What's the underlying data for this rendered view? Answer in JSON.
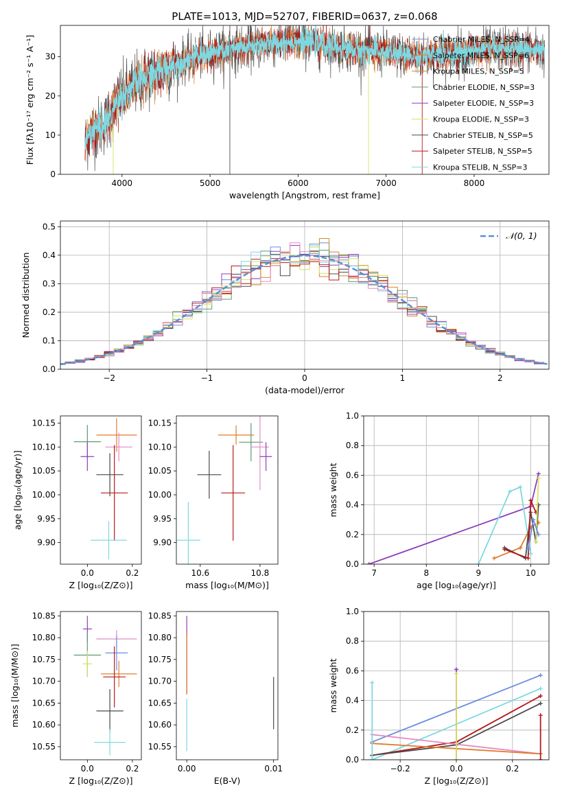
{
  "figure_title": "PLATE=1013, MJD=52707, FIBERID=0637, z=0.068",
  "colors": {
    "chabrier_miles": "#6a8be0",
    "salpeter_miles": "#e07b2e",
    "kroupa_miles": "#d28a28",
    "chabrier_elodie": "#5a9a6e",
    "salpeter_elodie": "#8e3fb8",
    "kroupa_elodie": "#d8e060",
    "chabrier_stelib": "#4a4a4a",
    "salpeter_stelib": "#b41818",
    "kroupa_stelib": "#7ed8e0",
    "pink": "#e48ac4",
    "gaussian": "#5b8fd4"
  },
  "chart_data": [
    {
      "id": "spectrum",
      "type": "line",
      "title": "PLATE=1013, MJD=52707, FIBERID=0637, z=0.068",
      "xlabel": "wavelength [Angstrom, rest frame]",
      "ylabel": "Flux [fλ10⁻¹⁷ erg cm⁻² s⁻¹ A⁻¹]",
      "xlim": [
        3300,
        8850
      ],
      "ylim": [
        0,
        38
      ],
      "xticks": [
        4000,
        5000,
        6000,
        7000,
        8000
      ],
      "yticks": [
        0,
        10,
        20,
        30
      ],
      "grid": false,
      "legend_position": "upper-right",
      "legend": [
        {
          "label": "Chabrier MILES, N_SSP=4",
          "color_key": "chabrier_miles"
        },
        {
          "label": "Salpeter MILES, N_SSP=6",
          "color_key": "salpeter_miles"
        },
        {
          "label": "Kroupa MILES, N_SSP=5",
          "color_key": "kroupa_miles"
        },
        {
          "label": "Chabrier ELODIE, N_SSP=3",
          "color_key": "chabrier_elodie"
        },
        {
          "label": "Salpeter ELODIE, N_SSP=3",
          "color_key": "salpeter_elodie"
        },
        {
          "label": "Kroupa ELODIE, N_SSP=3",
          "color_key": "kroupa_elodie"
        },
        {
          "label": "Chabrier STELIB, N_SSP=5",
          "color_key": "chabrier_stelib"
        },
        {
          "label": "Salpeter STELIB, N_SSP=5",
          "color_key": "salpeter_stelib"
        },
        {
          "label": "Kroupa STELIB, N_SSP=3",
          "color_key": "kroupa_stelib"
        }
      ],
      "continuum": {
        "x": [
          3580,
          3650,
          3750,
          3850,
          3950,
          4050,
          4150,
          4300,
          4500,
          4700,
          5000,
          5300,
          5600,
          6000,
          6300,
          6600,
          7000,
          7400,
          7800,
          8200,
          8600,
          8800
        ],
        "y": [
          8,
          11,
          12,
          14,
          19,
          21,
          23,
          25,
          27,
          29,
          31,
          32,
          33,
          34,
          33,
          32,
          31,
          30,
          31,
          32,
          32,
          31
        ]
      },
      "spikes": [
        {
          "x": 5225,
          "y0": 0,
          "y1": 38,
          "color_key": "chabrier_stelib"
        },
        {
          "x": 6800,
          "y0": 0,
          "y1": 30,
          "color_key": "kroupa_elodie"
        },
        {
          "x": 7410,
          "y0": 0,
          "y1": 32,
          "color_key": "salpeter_stelib"
        },
        {
          "x": 3900,
          "y0": 0,
          "y1": 12,
          "color_key": "kroupa_elodie"
        }
      ]
    },
    {
      "id": "residuals",
      "type": "histogram",
      "xlabel": "(data-model)/error",
      "ylabel": "Normed distribution",
      "xlim": [
        -2.5,
        2.5
      ],
      "ylim": [
        0,
        0.52
      ],
      "xticks": [
        -2,
        -1,
        0,
        1,
        2
      ],
      "yticks": [
        0.0,
        0.1,
        0.2,
        0.3,
        0.4,
        0.5
      ],
      "grid": true,
      "legend_position": "upper-right",
      "legend": [
        {
          "label": "𝒩(0, 1)",
          "color_key": "gaussian"
        }
      ],
      "bin_width": 0.1
    },
    {
      "id": "age_vs_Z",
      "type": "errorbar",
      "xlabel": "Z [log₁₀(Z/Z⊙)]",
      "ylabel": "age  [log₁₀(age/yr)]",
      "xlim": [
        -0.12,
        0.24
      ],
      "ylim": [
        9.855,
        10.165
      ],
      "xticks": [
        0.0,
        0.2
      ],
      "yticks": [
        9.9,
        9.95,
        10.0,
        10.05,
        10.1,
        10.15
      ],
      "points": [
        {
          "x": 0.0,
          "y": 10.111,
          "xerr": 0.06,
          "yerr": 0.035,
          "color_key": "chabrier_elodie"
        },
        {
          "x": 0.0,
          "y": 10.08,
          "xerr": 0.03,
          "yerr": 0.03,
          "color_key": "salpeter_elodie"
        },
        {
          "x": 0.13,
          "y": 10.125,
          "xerr": 0.09,
          "yerr": 0.035,
          "color_key": "salpeter_miles"
        },
        {
          "x": 0.14,
          "y": 10.1,
          "xerr": 0.06,
          "yerr": 0.03,
          "color_key": "pink"
        },
        {
          "x": 0.1,
          "y": 10.042,
          "xerr": 0.06,
          "yerr": 0.045,
          "color_key": "chabrier_stelib"
        },
        {
          "x": 0.12,
          "y": 10.004,
          "xerr": 0.06,
          "yerr": 0.1,
          "color_key": "salpeter_stelib"
        },
        {
          "x": 0.095,
          "y": 9.905,
          "xerr": 0.08,
          "yerr": 0.04,
          "color_key": "kroupa_stelib"
        }
      ]
    },
    {
      "id": "age_vs_mass",
      "type": "errorbar",
      "xlabel": "mass [log₁₀(M/M⊙)]",
      "ylabel": "",
      "xlim": [
        10.52,
        10.86
      ],
      "ylim": [
        9.855,
        10.165
      ],
      "xticks": [
        10.6,
        10.8
      ],
      "yticks": [
        9.9,
        9.95,
        10.0,
        10.05,
        10.1,
        10.15
      ],
      "points": [
        {
          "x": 10.72,
          "y": 10.125,
          "xerr": 0.06,
          "yerr": 0.02,
          "color_key": "salpeter_miles"
        },
        {
          "x": 10.77,
          "y": 10.11,
          "xerr": 0.04,
          "yerr": 0.04,
          "color_key": "chabrier_elodie"
        },
        {
          "x": 10.8,
          "y": 10.1,
          "xerr": 0.03,
          "yerr": 0.09,
          "color_key": "pink"
        },
        {
          "x": 10.82,
          "y": 10.08,
          "xerr": 0.02,
          "yerr": 0.03,
          "color_key": "salpeter_elodie"
        },
        {
          "x": 10.63,
          "y": 10.042,
          "xerr": 0.04,
          "yerr": 0.05,
          "color_key": "chabrier_stelib"
        },
        {
          "x": 10.71,
          "y": 10.004,
          "xerr": 0.04,
          "yerr": 0.1,
          "color_key": "salpeter_stelib"
        },
        {
          "x": 10.56,
          "y": 9.905,
          "xerr": 0.04,
          "yerr": 0.08,
          "color_key": "kroupa_stelib"
        }
      ]
    },
    {
      "id": "weight_vs_age",
      "type": "line",
      "xlabel": "age  [log₁₀(age/yr)]",
      "ylabel": "mass weight",
      "xlim": [
        6.8,
        10.35
      ],
      "ylim": [
        0,
        1.0
      ],
      "xticks": [
        7,
        8,
        9,
        10
      ],
      "yticks": [
        0.0,
        0.2,
        0.4,
        0.6,
        0.8,
        1.0
      ],
      "grid": true,
      "series": [
        {
          "color_key": "salpeter_elodie",
          "x": [
            6.9,
            10.0,
            10.15
          ],
          "y": [
            0.0,
            0.39,
            0.61
          ]
        },
        {
          "color_key": "kroupa_stelib",
          "x": [
            9.0,
            9.6,
            9.8,
            10.0
          ],
          "y": [
            0.0,
            0.49,
            0.52,
            0.07
          ]
        },
        {
          "color_key": "salpeter_miles",
          "x": [
            9.3,
            9.8,
            10.0,
            10.15
          ],
          "y": [
            0.04,
            0.11,
            0.25,
            0.28
          ]
        },
        {
          "color_key": "chabrier_stelib",
          "x": [
            9.5,
            9.9,
            10.0,
            10.1,
            10.15
          ],
          "y": [
            0.11,
            0.04,
            0.35,
            0.15,
            0.4
          ]
        },
        {
          "color_key": "salpeter_stelib",
          "x": [
            9.5,
            9.95,
            10.0,
            10.1
          ],
          "y": [
            0.1,
            0.04,
            0.43,
            0.35
          ]
        },
        {
          "color_key": "kroupa_elodie",
          "x": [
            10.1,
            10.15
          ],
          "y": [
            0.15,
            0.58
          ]
        },
        {
          "color_key": "chabrier_miles",
          "x": [
            9.95,
            10.05,
            10.15
          ],
          "y": [
            0.1,
            0.3,
            0.2
          ]
        }
      ]
    },
    {
      "id": "mass_vs_Z",
      "type": "errorbar",
      "xlabel": "Z [log₁₀(Z/Z⊙)]",
      "ylabel": "mass [log₁₀(M/M⊙)]",
      "xlim": [
        -0.12,
        0.24
      ],
      "ylim": [
        10.52,
        10.86
      ],
      "xticks": [
        0.0,
        0.2
      ],
      "yticks": [
        10.55,
        10.6,
        10.65,
        10.7,
        10.75,
        10.8,
        10.85
      ],
      "points": [
        {
          "x": 0.0,
          "y": 10.82,
          "xerr": 0.02,
          "yerr": 0.03,
          "color_key": "salpeter_elodie"
        },
        {
          "x": 0.0,
          "y": 10.76,
          "xerr": 0.06,
          "yerr": 0.05,
          "color_key": "chabrier_elodie"
        },
        {
          "x": 0.0,
          "y": 10.74,
          "xerr": 0.02,
          "yerr": 0.03,
          "color_key": "kroupa_elodie"
        },
        {
          "x": 0.13,
          "y": 10.797,
          "xerr": 0.09,
          "yerr": 0.02,
          "color_key": "pink"
        },
        {
          "x": 0.13,
          "y": 10.765,
          "xerr": 0.05,
          "yerr": 0.04,
          "color_key": "chabrier_miles"
        },
        {
          "x": 0.14,
          "y": 10.717,
          "xerr": 0.08,
          "yerr": 0.03,
          "color_key": "salpeter_miles"
        },
        {
          "x": 0.12,
          "y": 10.71,
          "xerr": 0.05,
          "yerr": 0.07,
          "color_key": "salpeter_stelib"
        },
        {
          "x": 0.1,
          "y": 10.632,
          "xerr": 0.06,
          "yerr": 0.05,
          "color_key": "chabrier_stelib"
        },
        {
          "x": 0.1,
          "y": 10.56,
          "xerr": 0.07,
          "yerr": 0.03,
          "color_key": "kroupa_stelib"
        }
      ]
    },
    {
      "id": "mass_vs_EBV",
      "type": "errorbar",
      "xlabel": "E(B-V)",
      "ylabel": "",
      "xlim": [
        -0.0012,
        0.0105
      ],
      "ylim": [
        10.52,
        10.86
      ],
      "xticks": [
        0.0,
        0.01
      ],
      "yticks": [
        10.55,
        10.6,
        10.65,
        10.7,
        10.75,
        10.8,
        10.85
      ],
      "points": [
        {
          "x": 0.0,
          "y": 10.76,
          "xerr": 0,
          "yerr": 0.09,
          "color_key": "salpeter_elodie"
        },
        {
          "x": 0.0,
          "y": 10.74,
          "xerr": 0,
          "yerr": 0.07,
          "color_key": "salpeter_miles"
        },
        {
          "x": 0.0,
          "y": 10.6,
          "xerr": 0,
          "yerr": 0.06,
          "color_key": "kroupa_stelib"
        },
        {
          "x": 0.01,
          "y": 10.65,
          "xerr": 0,
          "yerr": 0.06,
          "color_key": "chabrier_stelib"
        }
      ]
    },
    {
      "id": "weight_vs_Z",
      "type": "line",
      "xlabel": "Z [log₁₀(Z/Z⊙)]",
      "ylabel": "mass weight",
      "xlim": [
        -0.33,
        0.33
      ],
      "ylim": [
        0,
        1.0
      ],
      "xticks": [
        -0.2,
        0.0,
        0.2
      ],
      "yticks": [
        0.0,
        0.2,
        0.4,
        0.6,
        0.8,
        1.0
      ],
      "grid": true,
      "series": [
        {
          "color_key": "chabrier_miles",
          "x": [
            -0.3,
            0.3
          ],
          "y": [
            0.12,
            0.57
          ]
        },
        {
          "color_key": "kroupa_stelib",
          "x": [
            -0.3,
            0.3
          ],
          "y": [
            0.0,
            0.48
          ]
        },
        {
          "color_key": "salpeter_stelib",
          "x": [
            -0.3,
            0.0,
            0.3
          ],
          "y": [
            0.03,
            0.12,
            0.43
          ]
        },
        {
          "color_key": "chabrier_stelib",
          "x": [
            -0.3,
            0.0,
            0.3
          ],
          "y": [
            0.03,
            0.1,
            0.38
          ]
        },
        {
          "color_key": "pink",
          "x": [
            -0.3,
            0.3
          ],
          "y": [
            0.17,
            0.04
          ]
        },
        {
          "color_key": "salpeter_miles",
          "x": [
            -0.3,
            0.3
          ],
          "y": [
            0.11,
            0.04
          ]
        },
        {
          "color_key": "salpeter_elodie",
          "x": [
            0.0,
            0.0
          ],
          "y": [
            0.0,
            0.61
          ]
        },
        {
          "color_key": "kroupa_elodie",
          "x": [
            0.0,
            0.0
          ],
          "y": [
            0.0,
            0.58
          ]
        },
        {
          "color_key": "kroupa_stelib",
          "x": [
            -0.3,
            -0.3
          ],
          "y": [
            0.0,
            0.52
          ]
        },
        {
          "color_key": "salpeter_stelib",
          "x": [
            0.3,
            0.3
          ],
          "y": [
            0.0,
            0.3
          ]
        }
      ]
    }
  ]
}
